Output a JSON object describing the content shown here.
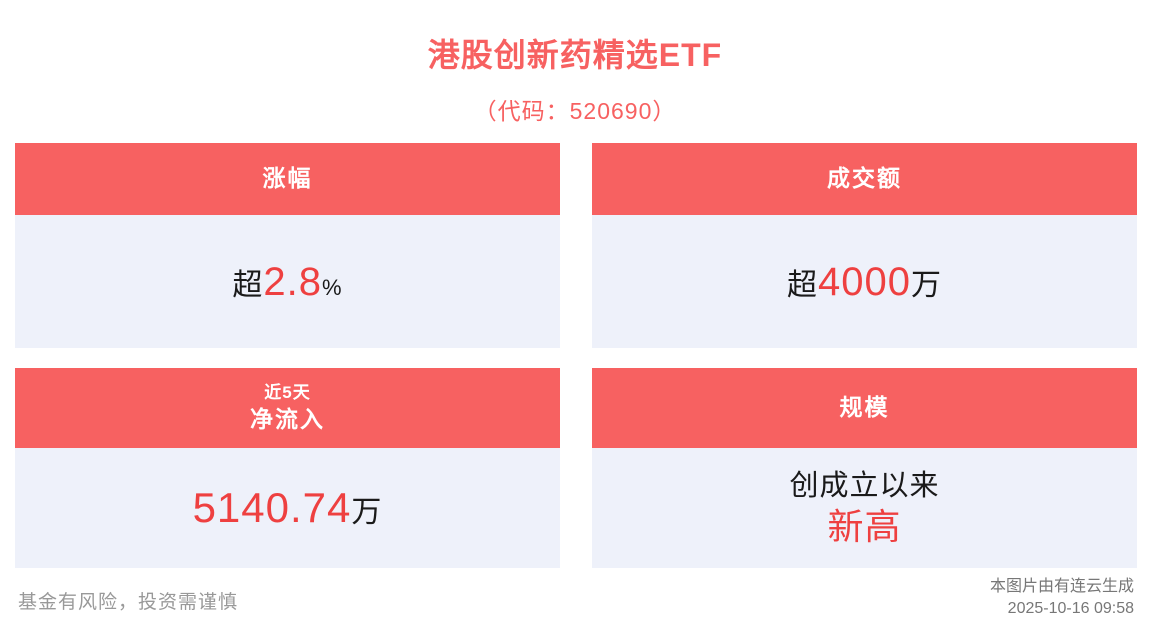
{
  "page": {
    "title": "港股创新药精选ETF",
    "subtitle": "（代码：520690）"
  },
  "cards": {
    "change": {
      "header": "涨幅",
      "prefix": "超",
      "value": "2.8",
      "suffix": "%"
    },
    "turnover": {
      "header": "成交额",
      "prefix": "超",
      "value": "4000",
      "suffix": "万"
    },
    "inflow": {
      "header_small": "近5天",
      "header": "净流入",
      "value": "5140.74",
      "suffix": "万"
    },
    "scale": {
      "header": "规模",
      "line1": "创成立以来",
      "line2": "新高"
    }
  },
  "footer": {
    "disclaimer": "基金有风险，投资需谨慎",
    "credit": "本图片由有连云生成",
    "timestamp": "2025-10-16 09:58"
  },
  "colors": {
    "header_red": "#f76161",
    "accent_red": "#ee4040",
    "body_bg": "#eef1fa",
    "footer_gray": "#999999"
  }
}
